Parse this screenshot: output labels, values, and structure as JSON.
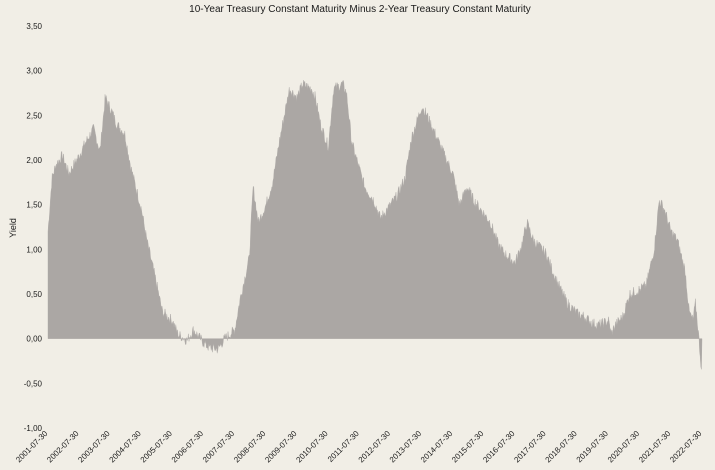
{
  "chart_data": {
    "type": "area",
    "title": "10-Year Treasury Constant Maturity Minus 2-Year Treasury Constant Maturity",
    "xlabel": "",
    "ylabel": "Yield",
    "ylim": [
      -1.0,
      3.5
    ],
    "yticks": [
      3.5,
      3.0,
      2.5,
      2.0,
      1.5,
      1.0,
      0.5,
      0.0,
      -0.5,
      -1.0
    ],
    "ytick_labels": [
      "3,50",
      "3,00",
      "2,50",
      "2,00",
      "1,50",
      "1,00",
      "0,50",
      "0,00",
      "-0,50",
      "-1,00"
    ],
    "xlim": [
      "2001-07-30",
      "2022-07-30"
    ],
    "xtick_labels": [
      "2001-07-30",
      "2002-07-30",
      "2003-07-30",
      "2004-07-30",
      "2005-07-30",
      "2006-07-30",
      "2007-07-30",
      "2008-07-30",
      "2009-07-30",
      "2010-07-30",
      "2011-07-30",
      "2012-07-30",
      "2013-07-30",
      "2014-07-30",
      "2015-07-30",
      "2016-07-30",
      "2017-07-30",
      "2018-07-30",
      "2019-07-30",
      "2020-07-30",
      "2021-07-30",
      "2022-07-30"
    ],
    "grid": false,
    "fill_color": "#aba7a4",
    "series": [
      {
        "x": [
          "2001-07-30",
          "2001-09-15",
          "2001-11-01",
          "2002-01-15",
          "2002-04-01",
          "2002-07-30",
          "2002-10-15",
          "2003-01-15",
          "2003-04-01",
          "2003-06-01",
          "2003-08-15",
          "2003-10-15",
          "2004-01-15",
          "2004-04-01",
          "2004-07-30",
          "2004-10-01",
          "2005-01-15",
          "2005-04-01",
          "2005-07-30",
          "2005-10-01",
          "2006-01-15",
          "2006-04-01",
          "2006-07-30",
          "2006-10-01",
          "2007-01-15",
          "2007-04-01",
          "2007-07-30",
          "2007-10-01",
          "2008-01-15",
          "2008-03-01",
          "2008-05-01",
          "2008-07-30",
          "2008-10-15",
          "2009-01-01",
          "2009-03-01",
          "2009-05-01",
          "2009-07-30",
          "2009-10-01",
          "2010-01-15",
          "2010-03-01",
          "2010-05-01",
          "2010-07-30",
          "2010-10-01",
          "2011-01-15",
          "2011-03-01",
          "2011-05-01",
          "2011-07-30",
          "2011-10-01",
          "2012-01-15",
          "2012-04-01",
          "2012-07-30",
          "2012-10-15",
          "2013-01-15",
          "2013-04-01",
          "2013-07-30",
          "2013-10-01",
          "2014-01-01",
          "2014-04-01",
          "2014-07-30",
          "2014-10-15",
          "2015-01-15",
          "2015-04-01",
          "2015-07-30",
          "2015-10-15",
          "2016-01-15",
          "2016-04-01",
          "2016-07-30",
          "2016-10-15",
          "2016-12-15",
          "2017-03-01",
          "2017-07-30",
          "2017-10-15",
          "2018-01-15",
          "2018-04-01",
          "2018-07-30",
          "2018-10-15",
          "2019-01-15",
          "2019-04-01",
          "2019-07-30",
          "2019-09-01",
          "2019-10-15",
          "2020-01-15",
          "2020-04-01",
          "2020-07-30",
          "2020-10-15",
          "2021-01-15",
          "2021-03-15",
          "2021-05-15",
          "2021-07-30",
          "2021-10-15",
          "2022-01-15",
          "2022-03-01",
          "2022-04-15",
          "2022-05-15",
          "2022-06-15",
          "2022-07-15",
          "2022-07-30"
        ],
        "values": [
          1.2,
          1.8,
          1.95,
          2.05,
          1.85,
          2.05,
          2.2,
          2.35,
          2.1,
          2.7,
          2.55,
          2.4,
          2.3,
          1.9,
          1.45,
          1.1,
          0.65,
          0.3,
          0.2,
          0.05,
          -0.02,
          0.1,
          -0.05,
          -0.1,
          -0.12,
          0.0,
          0.1,
          0.45,
          0.9,
          1.7,
          1.3,
          1.5,
          1.75,
          2.2,
          2.5,
          2.8,
          2.7,
          2.85,
          2.8,
          2.7,
          2.4,
          2.15,
          2.8,
          2.85,
          2.75,
          2.2,
          1.9,
          1.7,
          1.55,
          1.35,
          1.5,
          1.6,
          1.8,
          2.25,
          2.6,
          2.5,
          2.3,
          2.1,
          1.85,
          1.5,
          1.7,
          1.55,
          1.4,
          1.3,
          1.05,
          0.95,
          0.85,
          1.05,
          1.3,
          1.1,
          0.95,
          0.75,
          0.55,
          0.4,
          0.28,
          0.25,
          0.18,
          0.15,
          0.2,
          0.05,
          0.15,
          0.25,
          0.5,
          0.55,
          0.6,
          1.0,
          1.55,
          1.45,
          1.2,
          1.1,
          0.75,
          0.3,
          0.2,
          0.4,
          0.1,
          -0.25,
          -0.45
        ]
      }
    ]
  }
}
